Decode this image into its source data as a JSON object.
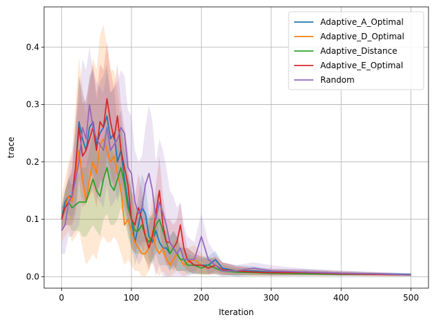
{
  "chart_data": {
    "type": "line",
    "title": "",
    "xlabel": "Iteration",
    "ylabel": "trace",
    "xlim": [
      -25,
      525
    ],
    "ylim": [
      -0.02,
      0.47
    ],
    "xticks": [
      0,
      100,
      200,
      300,
      400,
      500
    ],
    "xtick_labels": [
      "0",
      "100",
      "200",
      "300",
      "400",
      "500"
    ],
    "yticks": [
      0.0,
      0.1,
      0.2,
      0.3,
      0.4
    ],
    "ytick_labels": [
      "0.0",
      "0.1",
      "0.2",
      "0.3",
      "0.4"
    ],
    "grid": true,
    "legend_position": "top-right",
    "series": [
      {
        "name": "Adaptive_A_Optimal",
        "color": "#1f77b4",
        "x": [
          0,
          5,
          10,
          15,
          20,
          25,
          30,
          35,
          40,
          45,
          50,
          55,
          60,
          65,
          70,
          75,
          80,
          85,
          90,
          95,
          100,
          105,
          110,
          115,
          120,
          125,
          130,
          135,
          140,
          145,
          150,
          155,
          160,
          165,
          170,
          175,
          180,
          190,
          200,
          210,
          220,
          230,
          250,
          275,
          300,
          350,
          400,
          450,
          500
        ],
        "y": [
          0.1,
          0.13,
          0.14,
          0.14,
          0.19,
          0.27,
          0.24,
          0.22,
          0.26,
          0.27,
          0.23,
          0.25,
          0.26,
          0.28,
          0.24,
          0.25,
          0.2,
          0.22,
          0.17,
          0.13,
          0.1,
          0.06,
          0.09,
          0.12,
          0.11,
          0.07,
          0.06,
          0.08,
          0.06,
          0.05,
          0.05,
          0.04,
          0.05,
          0.04,
          0.03,
          0.03,
          0.03,
          0.02,
          0.02,
          0.02,
          0.03,
          0.015,
          0.01,
          0.01,
          0.008,
          0.008,
          0.006,
          0.005,
          0.004
        ],
        "upper": [
          0.12,
          0.15,
          0.17,
          0.18,
          0.26,
          0.35,
          0.32,
          0.3,
          0.35,
          0.36,
          0.31,
          0.34,
          0.35,
          0.37,
          0.32,
          0.33,
          0.27,
          0.29,
          0.23,
          0.18,
          0.15,
          0.1,
          0.14,
          0.18,
          0.16,
          0.11,
          0.1,
          0.12,
          0.1,
          0.08,
          0.08,
          0.07,
          0.08,
          0.07,
          0.05,
          0.05,
          0.05,
          0.04,
          0.035,
          0.035,
          0.045,
          0.025,
          0.02,
          0.018,
          0.014,
          0.013,
          0.01,
          0.008,
          0.006
        ],
        "lower": [
          0.08,
          0.11,
          0.11,
          0.1,
          0.12,
          0.19,
          0.16,
          0.14,
          0.17,
          0.18,
          0.15,
          0.16,
          0.17,
          0.19,
          0.16,
          0.17,
          0.13,
          0.15,
          0.11,
          0.08,
          0.05,
          0.02,
          0.04,
          0.06,
          0.06,
          0.03,
          0.02,
          0.04,
          0.02,
          0.02,
          0.02,
          0.01,
          0.02,
          0.01,
          0.01,
          0.01,
          0.01,
          0.005,
          0.005,
          0.005,
          0.01,
          0.005,
          0.0,
          0.002,
          0.002,
          0.003,
          0.002,
          0.002,
          0.002
        ]
      },
      {
        "name": "Adaptive_D_Optimal",
        "color": "#ff7f0e",
        "x": [
          0,
          5,
          10,
          15,
          20,
          25,
          30,
          35,
          40,
          45,
          50,
          55,
          60,
          65,
          70,
          75,
          80,
          85,
          90,
          95,
          100,
          105,
          110,
          115,
          120,
          125,
          130,
          135,
          140,
          145,
          150,
          155,
          160,
          165,
          170,
          175,
          180,
          190,
          200,
          210,
          220,
          230,
          250,
          275,
          300,
          350,
          400,
          450,
          500
        ],
        "y": [
          0.1,
          0.12,
          0.14,
          0.13,
          0.18,
          0.22,
          0.17,
          0.13,
          0.17,
          0.2,
          0.18,
          0.23,
          0.24,
          0.22,
          0.2,
          0.21,
          0.18,
          0.15,
          0.09,
          0.1,
          0.08,
          0.06,
          0.05,
          0.04,
          0.04,
          0.05,
          0.08,
          0.05,
          0.04,
          0.05,
          0.03,
          0.02,
          0.03,
          0.04,
          0.03,
          0.02,
          0.025,
          0.03,
          0.02,
          0.015,
          0.02,
          0.012,
          0.01,
          0.008,
          0.007,
          0.006,
          0.005,
          0.004,
          0.003
        ],
        "upper": [
          0.14,
          0.17,
          0.2,
          0.22,
          0.3,
          0.38,
          0.33,
          0.28,
          0.34,
          0.38,
          0.36,
          0.42,
          0.44,
          0.4,
          0.36,
          0.36,
          0.32,
          0.27,
          0.17,
          0.18,
          0.15,
          0.12,
          0.1,
          0.09,
          0.08,
          0.09,
          0.14,
          0.1,
          0.08,
          0.09,
          0.07,
          0.05,
          0.06,
          0.07,
          0.06,
          0.05,
          0.05,
          0.055,
          0.04,
          0.03,
          0.035,
          0.025,
          0.018,
          0.015,
          0.013,
          0.011,
          0.009,
          0.007,
          0.005
        ],
        "lower": [
          0.06,
          0.07,
          0.08,
          0.06,
          0.07,
          0.08,
          0.05,
          0.02,
          0.03,
          0.04,
          0.03,
          0.06,
          0.07,
          0.06,
          0.06,
          0.07,
          0.06,
          0.04,
          0.02,
          0.03,
          0.02,
          0.01,
          0.01,
          0.0,
          0.0,
          0.01,
          0.03,
          0.01,
          0.0,
          0.01,
          0.0,
          0.0,
          0.005,
          0.01,
          0.005,
          0.0,
          0.005,
          0.01,
          0.005,
          0.003,
          0.006,
          0.004,
          0.003,
          0.002,
          0.002,
          0.002,
          0.002,
          0.001,
          0.001
        ]
      },
      {
        "name": "Adaptive_Distance",
        "color": "#2ca02c",
        "x": [
          0,
          5,
          10,
          15,
          20,
          25,
          30,
          35,
          40,
          45,
          50,
          55,
          60,
          65,
          70,
          75,
          80,
          85,
          90,
          95,
          100,
          105,
          110,
          115,
          120,
          125,
          130,
          135,
          140,
          145,
          150,
          155,
          160,
          165,
          170,
          175,
          180,
          190,
          200,
          210,
          220,
          230,
          250,
          275,
          300,
          350,
          400,
          450,
          500
        ],
        "y": [
          0.1,
          0.12,
          0.13,
          0.12,
          0.125,
          0.13,
          0.13,
          0.13,
          0.15,
          0.17,
          0.15,
          0.14,
          0.17,
          0.19,
          0.16,
          0.15,
          0.17,
          0.19,
          0.16,
          0.12,
          0.1,
          0.08,
          0.08,
          0.09,
          0.07,
          0.06,
          0.07,
          0.09,
          0.1,
          0.08,
          0.06,
          0.04,
          0.05,
          0.04,
          0.03,
          0.03,
          0.02,
          0.02,
          0.015,
          0.02,
          0.015,
          0.01,
          0.008,
          0.007,
          0.006,
          0.005,
          0.004,
          0.004,
          0.003
        ],
        "upper": [
          0.12,
          0.15,
          0.17,
          0.16,
          0.17,
          0.18,
          0.19,
          0.19,
          0.22,
          0.25,
          0.22,
          0.21,
          0.24,
          0.27,
          0.23,
          0.21,
          0.24,
          0.26,
          0.22,
          0.17,
          0.15,
          0.12,
          0.12,
          0.14,
          0.11,
          0.1,
          0.11,
          0.14,
          0.15,
          0.12,
          0.09,
          0.07,
          0.08,
          0.07,
          0.05,
          0.05,
          0.04,
          0.035,
          0.03,
          0.035,
          0.028,
          0.02,
          0.015,
          0.013,
          0.011,
          0.009,
          0.007,
          0.006,
          0.005
        ],
        "lower": [
          0.08,
          0.09,
          0.09,
          0.08,
          0.08,
          0.08,
          0.07,
          0.07,
          0.08,
          0.09,
          0.08,
          0.07,
          0.1,
          0.11,
          0.09,
          0.09,
          0.1,
          0.12,
          0.1,
          0.07,
          0.05,
          0.04,
          0.04,
          0.04,
          0.03,
          0.02,
          0.03,
          0.04,
          0.05,
          0.04,
          0.03,
          0.01,
          0.02,
          0.01,
          0.01,
          0.01,
          0.005,
          0.005,
          0.003,
          0.005,
          0.004,
          0.002,
          0.002,
          0.002,
          0.002,
          0.002,
          0.002,
          0.002,
          0.001
        ]
      },
      {
        "name": "Adaptive_E_Optimal",
        "color": "#d62728",
        "x": [
          0,
          5,
          10,
          15,
          20,
          25,
          30,
          35,
          40,
          45,
          50,
          55,
          60,
          65,
          70,
          75,
          80,
          85,
          90,
          95,
          100,
          105,
          110,
          115,
          120,
          125,
          130,
          135,
          140,
          145,
          150,
          155,
          160,
          165,
          170,
          175,
          180,
          190,
          200,
          210,
          220,
          230,
          250,
          275,
          300,
          350,
          400,
          450,
          500
        ],
        "y": [
          0.1,
          0.12,
          0.13,
          0.14,
          0.19,
          0.26,
          0.21,
          0.22,
          0.24,
          0.26,
          0.22,
          0.27,
          0.26,
          0.31,
          0.27,
          0.24,
          0.28,
          0.22,
          0.19,
          0.16,
          0.1,
          0.09,
          0.12,
          0.1,
          0.07,
          0.05,
          0.07,
          0.11,
          0.15,
          0.09,
          0.06,
          0.06,
          0.05,
          0.06,
          0.09,
          0.05,
          0.03,
          0.02,
          0.02,
          0.015,
          0.02,
          0.012,
          0.01,
          0.008,
          0.007,
          0.007,
          0.005,
          0.004,
          0.003
        ],
        "upper": [
          0.12,
          0.15,
          0.17,
          0.19,
          0.27,
          0.35,
          0.3,
          0.31,
          0.34,
          0.37,
          0.32,
          0.37,
          0.36,
          0.41,
          0.36,
          0.33,
          0.37,
          0.3,
          0.26,
          0.22,
          0.15,
          0.14,
          0.18,
          0.15,
          0.11,
          0.09,
          0.11,
          0.16,
          0.21,
          0.14,
          0.1,
          0.1,
          0.09,
          0.1,
          0.13,
          0.08,
          0.05,
          0.04,
          0.035,
          0.03,
          0.035,
          0.025,
          0.018,
          0.015,
          0.013,
          0.012,
          0.009,
          0.007,
          0.005
        ],
        "lower": [
          0.08,
          0.09,
          0.09,
          0.09,
          0.11,
          0.17,
          0.12,
          0.13,
          0.14,
          0.15,
          0.12,
          0.17,
          0.16,
          0.21,
          0.18,
          0.15,
          0.19,
          0.14,
          0.12,
          0.1,
          0.05,
          0.04,
          0.06,
          0.05,
          0.03,
          0.01,
          0.03,
          0.06,
          0.09,
          0.04,
          0.02,
          0.02,
          0.01,
          0.02,
          0.05,
          0.02,
          0.01,
          0.005,
          0.005,
          0.003,
          0.006,
          0.003,
          0.003,
          0.002,
          0.002,
          0.002,
          0.002,
          0.001,
          0.001
        ]
      },
      {
        "name": "Random",
        "color": "#9467bd",
        "x": [
          0,
          5,
          10,
          15,
          20,
          25,
          30,
          35,
          40,
          45,
          50,
          55,
          60,
          65,
          70,
          75,
          80,
          85,
          90,
          95,
          100,
          105,
          110,
          115,
          120,
          125,
          130,
          135,
          140,
          145,
          150,
          155,
          160,
          165,
          170,
          175,
          180,
          190,
          200,
          210,
          220,
          230,
          250,
          275,
          300,
          350,
          400,
          450,
          500
        ],
        "y": [
          0.08,
          0.09,
          0.13,
          0.14,
          0.17,
          0.2,
          0.26,
          0.24,
          0.3,
          0.26,
          0.24,
          0.23,
          0.22,
          0.26,
          0.22,
          0.23,
          0.24,
          0.26,
          0.25,
          0.19,
          0.18,
          0.13,
          0.11,
          0.12,
          0.16,
          0.18,
          0.15,
          0.1,
          0.13,
          0.11,
          0.09,
          0.06,
          0.05,
          0.04,
          0.05,
          0.03,
          0.03,
          0.03,
          0.07,
          0.03,
          0.02,
          0.01,
          0.01,
          0.015,
          0.01,
          0.008,
          0.006,
          0.005,
          0.003
        ],
        "upper": [
          0.12,
          0.14,
          0.19,
          0.21,
          0.26,
          0.31,
          0.38,
          0.36,
          0.4,
          0.36,
          0.34,
          0.33,
          0.32,
          0.36,
          0.32,
          0.33,
          0.34,
          0.36,
          0.35,
          0.29,
          0.28,
          0.22,
          0.2,
          0.21,
          0.26,
          0.3,
          0.27,
          0.2,
          0.24,
          0.22,
          0.19,
          0.15,
          0.14,
          0.12,
          0.13,
          0.09,
          0.07,
          0.06,
          0.11,
          0.06,
          0.04,
          0.025,
          0.02,
          0.025,
          0.02,
          0.014,
          0.011,
          0.008,
          0.006
        ],
        "lower": [
          0.04,
          0.04,
          0.07,
          0.07,
          0.08,
          0.09,
          0.14,
          0.12,
          0.2,
          0.16,
          0.14,
          0.13,
          0.12,
          0.16,
          0.12,
          0.13,
          0.14,
          0.16,
          0.15,
          0.09,
          0.08,
          0.04,
          0.02,
          0.03,
          0.06,
          0.06,
          0.03,
          0.0,
          0.02,
          0.0,
          0.0,
          0.0,
          0.0,
          0.0,
          0.0,
          0.0,
          0.0,
          0.005,
          0.03,
          0.005,
          0.004,
          0.0,
          0.002,
          0.006,
          0.002,
          0.002,
          0.002,
          0.002,
          0.001
        ]
      }
    ]
  }
}
